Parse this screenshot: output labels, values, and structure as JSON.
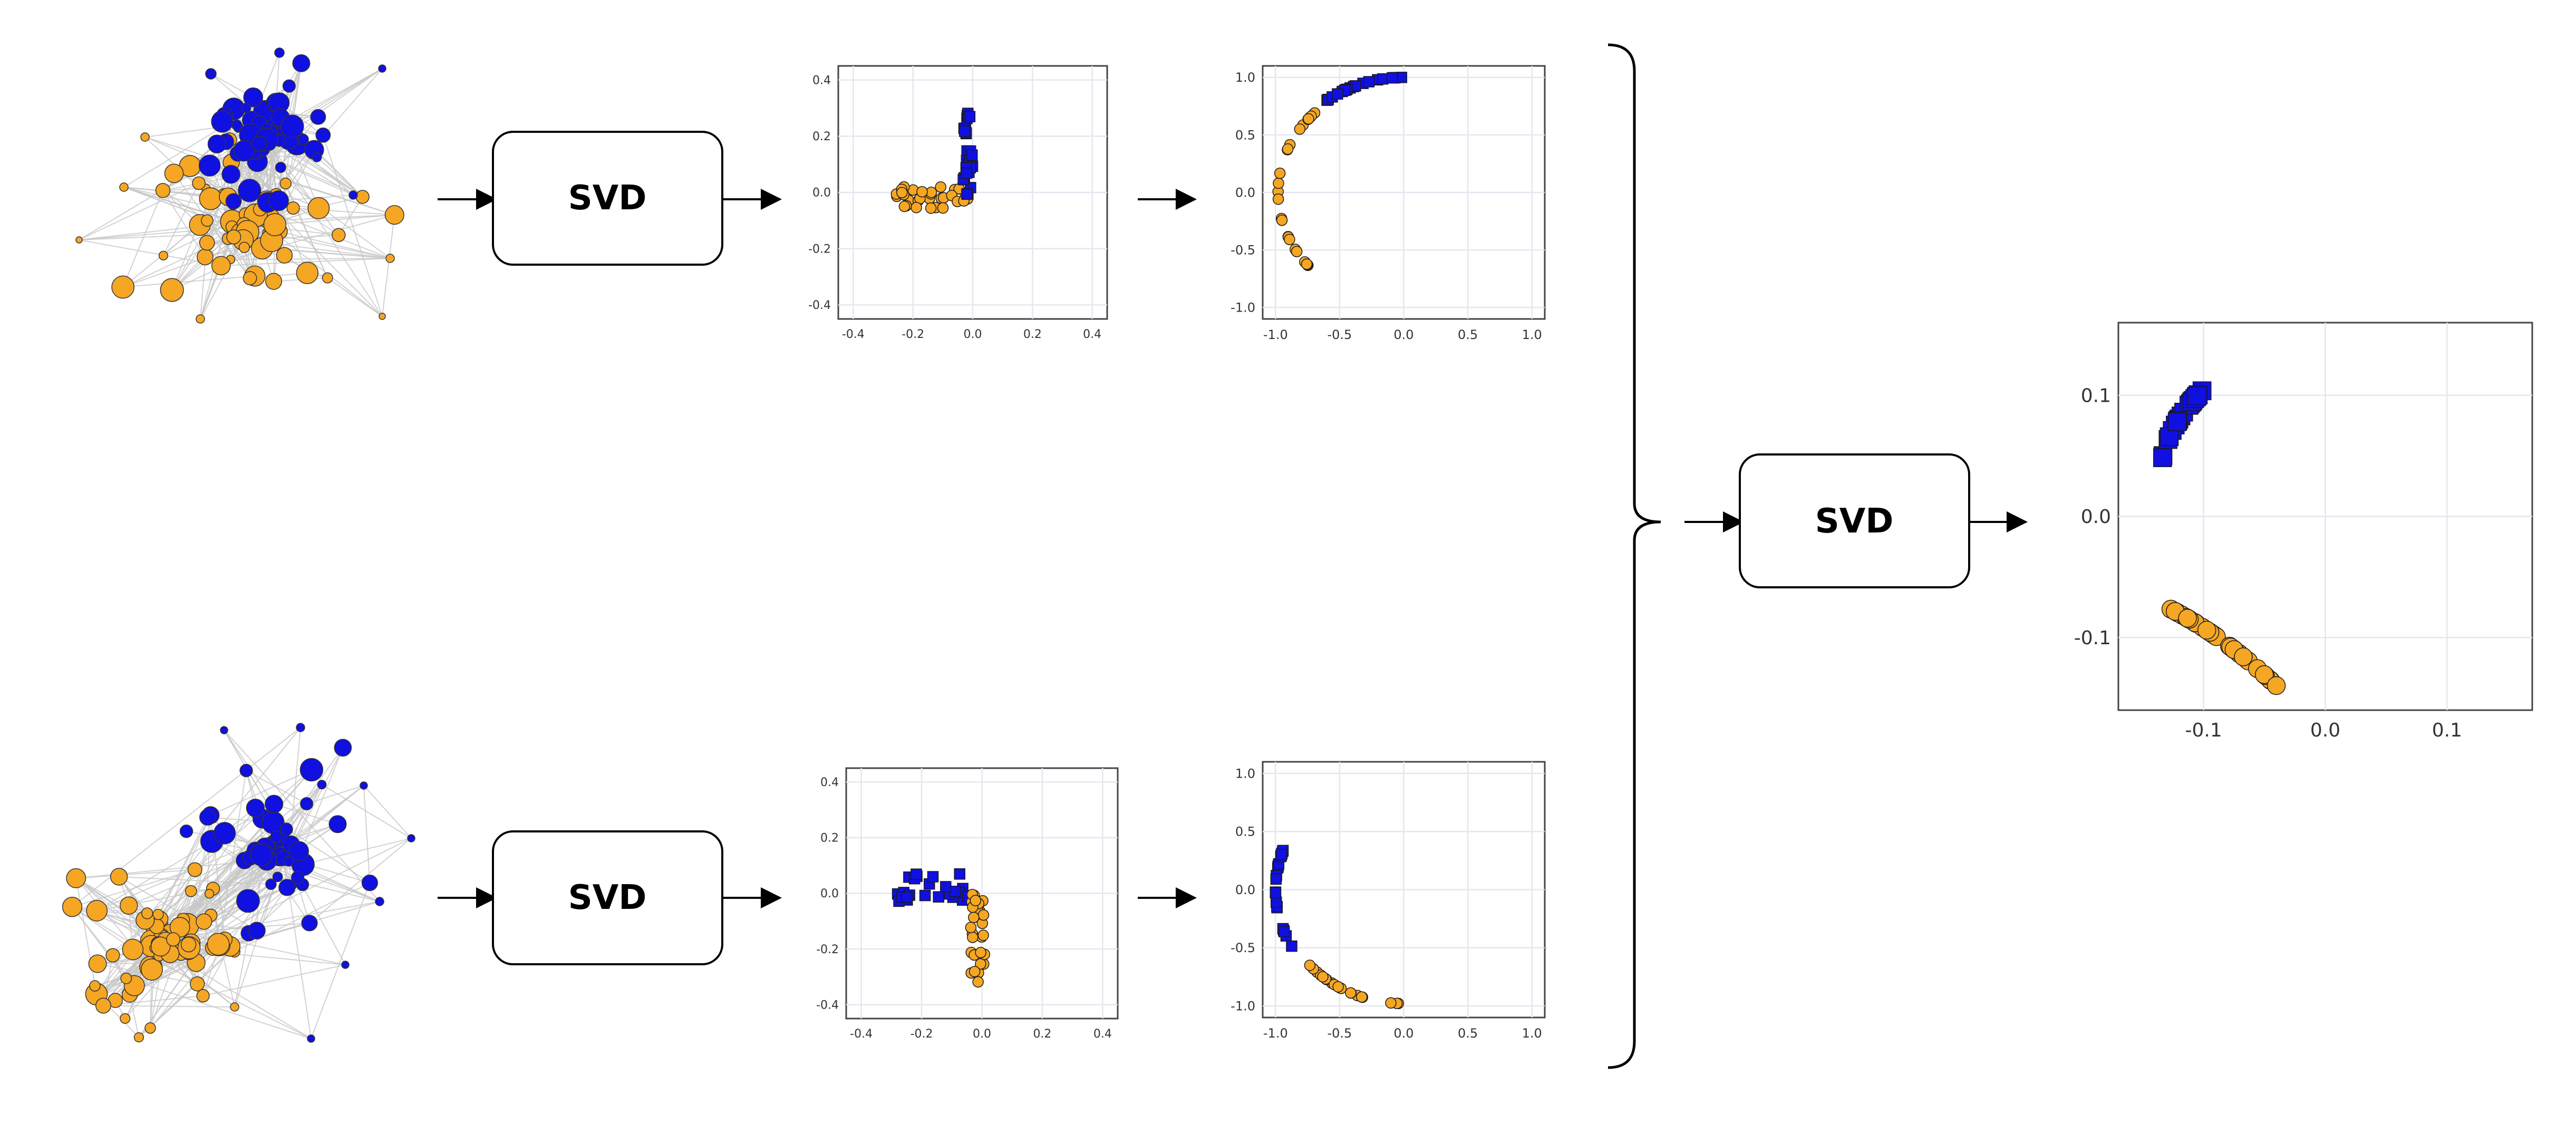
{
  "svd_label": "SVD",
  "colors": {
    "group_a": "#1010e0",
    "group_b": "#f5a623",
    "edge": "#c8c8c8",
    "stroke": "#1a1a1a",
    "grid": "#e6e6f0"
  },
  "plots": {
    "top_first": {
      "xlim": [
        -0.45,
        0.45
      ],
      "ylim": [
        -0.45,
        0.45
      ],
      "xticks": [
        "-0.4",
        "-0.2",
        "0.0",
        "0.2",
        "0.4"
      ],
      "yticks": [
        "0.4",
        "0.2",
        "0.0",
        "-0.2",
        "-0.4"
      ]
    },
    "top_second": {
      "xlim": [
        -1.1,
        1.1
      ],
      "ylim": [
        -1.1,
        1.1
      ],
      "xticks": [
        "-1.0",
        "-0.5",
        "0.0",
        "0.5",
        "1.0"
      ],
      "yticks": [
        "1.0",
        "0.5",
        "0.0",
        "-0.5",
        "-1.0"
      ]
    },
    "bottom_first": {
      "xlim": [
        -0.45,
        0.45
      ],
      "ylim": [
        -0.45,
        0.45
      ],
      "xticks": [
        "-0.4",
        "-0.2",
        "0.0",
        "0.2",
        "0.4"
      ],
      "yticks": [
        "0.4",
        "0.2",
        "0.0",
        "-0.2",
        "-0.4"
      ]
    },
    "bottom_second": {
      "xlim": [
        -1.1,
        1.1
      ],
      "ylim": [
        -1.1,
        1.1
      ],
      "xticks": [
        "-1.0",
        "-0.5",
        "0.0",
        "0.5",
        "1.0"
      ],
      "yticks": [
        "1.0",
        "0.5",
        "0.0",
        "-0.5",
        "-1.0"
      ]
    },
    "combined": {
      "xlim": [
        -0.17,
        0.17
      ],
      "ylim": [
        -0.16,
        0.16
      ],
      "xticks": [
        "-0.1",
        "0.0",
        "0.1"
      ],
      "yticks": [
        "0.1",
        "0.0",
        "-0.1"
      ]
    }
  }
}
